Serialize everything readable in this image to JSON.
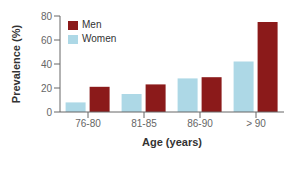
{
  "chart_data": {
    "type": "bar",
    "categories": [
      "76-80",
      "81-85",
      "86-90",
      "> 90"
    ],
    "series": [
      {
        "name": "Women",
        "color": "#ADD8E6",
        "values": [
          8,
          15,
          28,
          42
        ]
      },
      {
        "name": "Men",
        "color": "#8B1A1A",
        "values": [
          21,
          23,
          29,
          75
        ]
      }
    ],
    "xlabel": "Age (years)",
    "ylabel": "Prevalence (%)",
    "ylim": [
      0,
      80
    ],
    "yticks": [
      0,
      20,
      40,
      60,
      80
    ],
    "grid": false,
    "legend": "upper left"
  }
}
